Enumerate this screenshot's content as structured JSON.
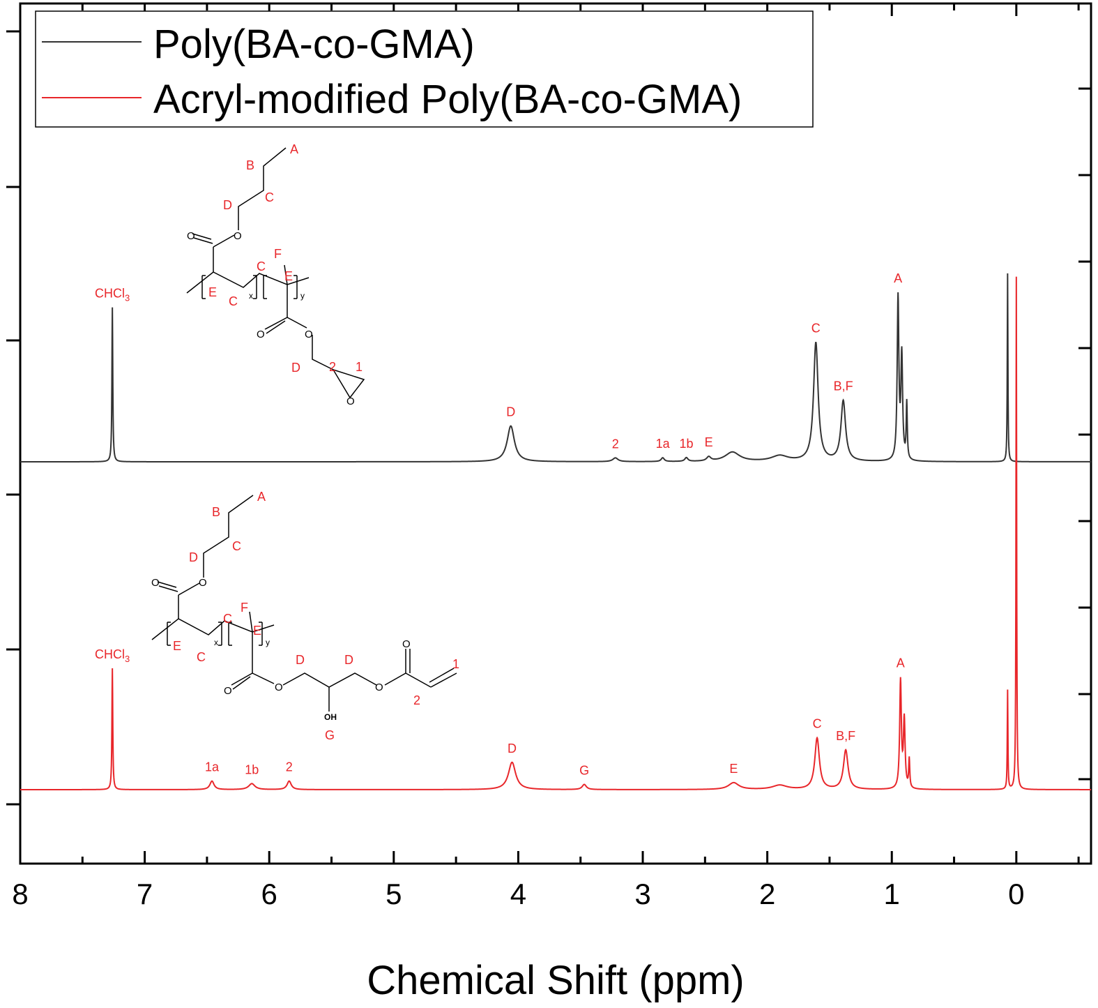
{
  "chart_data": {
    "type": "line",
    "xlabel": "Chemical Shift (ppm)",
    "x_reversed": true,
    "xlim": [
      8,
      -0.6
    ],
    "x_ticks": [
      "8",
      "7",
      "6",
      "5",
      "4",
      "3",
      "2",
      "1",
      "0"
    ],
    "y_ticks_shown": false,
    "legend": {
      "placement": "top-left",
      "entries": [
        {
          "name": "Poly(BA-co-GMA)",
          "color": "#333333"
        },
        {
          "name": "Acryl-modified Poly(BA-co-GMA)",
          "color": "#e8262a"
        }
      ]
    },
    "series": [
      {
        "name": "Poly(BA-co-GMA)",
        "color": "#333333",
        "peaks": [
          {
            "x": 7.26,
            "height": 0.82,
            "width": 0.004,
            "label": "CHCl3"
          },
          {
            "x": 4.06,
            "height": 0.19,
            "width": 0.035,
            "label": "D"
          },
          {
            "x": 3.22,
            "height": 0.02,
            "width": 0.025,
            "label": "2"
          },
          {
            "x": 2.84,
            "height": 0.02,
            "width": 0.015,
            "label": "1a"
          },
          {
            "x": 2.65,
            "height": 0.02,
            "width": 0.015,
            "label": "1b"
          },
          {
            "x": 2.47,
            "height": 0.022,
            "width": 0.02,
            "label": "E"
          },
          {
            "x": 2.28,
            "height": 0.05,
            "width": 0.07
          },
          {
            "x": 1.9,
            "height": 0.03,
            "width": 0.08
          },
          {
            "x": 1.61,
            "height": 0.63,
            "width": 0.022,
            "label": "C"
          },
          {
            "x": 1.39,
            "height": 0.32,
            "width": 0.022,
            "label": "B,F"
          },
          {
            "x": 0.95,
            "height": 0.86,
            "width": 0.008,
            "label": "A"
          },
          {
            "x": 0.92,
            "height": 0.55,
            "width": 0.008
          },
          {
            "x": 0.88,
            "height": 0.3,
            "width": 0.005
          },
          {
            "x": 0.07,
            "height": 1.0,
            "width": 0.003
          }
        ]
      },
      {
        "name": "Acryl-modified Poly(BA-co-GMA)",
        "color": "#e8262a",
        "peaks": [
          {
            "x": 7.26,
            "height": 0.71,
            "width": 0.004,
            "label": "CHCl3"
          },
          {
            "x": 6.46,
            "height": 0.05,
            "width": 0.02,
            "label": "1a"
          },
          {
            "x": 6.14,
            "height": 0.035,
            "width": 0.03,
            "label": "1b"
          },
          {
            "x": 5.84,
            "height": 0.05,
            "width": 0.02,
            "label": "2"
          },
          {
            "x": 4.05,
            "height": 0.16,
            "width": 0.035,
            "label": "D"
          },
          {
            "x": 3.47,
            "height": 0.03,
            "width": 0.02,
            "label": "G"
          },
          {
            "x": 2.27,
            "height": 0.04,
            "width": 0.05,
            "label": "E"
          },
          {
            "x": 1.9,
            "height": 0.025,
            "width": 0.07
          },
          {
            "x": 1.6,
            "height": 0.3,
            "width": 0.022,
            "label": "C"
          },
          {
            "x": 1.37,
            "height": 0.23,
            "width": 0.022,
            "label": "B,F"
          },
          {
            "x": 0.93,
            "height": 0.63,
            "width": 0.008,
            "label": "A"
          },
          {
            "x": 0.9,
            "height": 0.4,
            "width": 0.008
          },
          {
            "x": 0.86,
            "height": 0.17,
            "width": 0.005
          },
          {
            "x": 0.07,
            "height": 0.58,
            "width": 0.003
          },
          {
            "x": 0.0,
            "height": 3.0,
            "width": 0.003
          }
        ]
      }
    ],
    "structures": [
      {
        "name": "Poly(BA-co-GMA) structure",
        "atom_labels": [
          "A",
          "B",
          "C",
          "D",
          "C",
          "F",
          "E",
          "E",
          "C",
          "D",
          "2",
          "1"
        ],
        "subscripts": [
          "x",
          "y"
        ]
      },
      {
        "name": "Acryl-modified structure",
        "atom_labels": [
          "A",
          "B",
          "C",
          "D",
          "C",
          "F",
          "E",
          "E",
          "C",
          "D",
          "D",
          "1",
          "2",
          "OH",
          "G"
        ],
        "subscripts": [
          "x",
          "y"
        ]
      }
    ]
  }
}
